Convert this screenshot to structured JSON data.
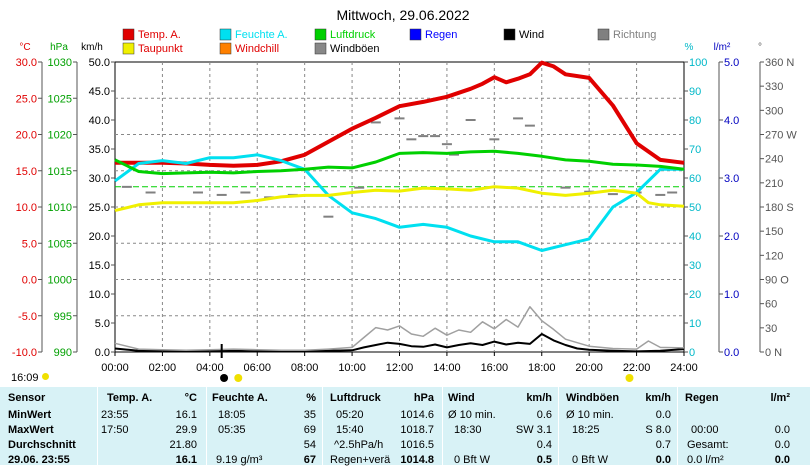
{
  "chart_data": {
    "type": "line",
    "title": "Mittwoch, 29.06.2022",
    "x_ticks": [
      "00:00",
      "02:00",
      "04:00",
      "06:00",
      "08:00",
      "10:00",
      "12:00",
      "14:00",
      "16:00",
      "18:00",
      "20:00",
      "22:00",
      "24:00"
    ],
    "xlim": [
      0,
      24
    ],
    "grid": true,
    "legend_position": "top",
    "axes": [
      {
        "id": "temp",
        "unit": "°C",
        "ticks": [
          "30.0",
          "25.0",
          "20.0",
          "15.0",
          "10.0",
          "5.0",
          "0.0",
          "-5.0",
          "-10.0"
        ],
        "ylim": [
          -10,
          30
        ],
        "color": "#e00000"
      },
      {
        "id": "hpa",
        "unit": "hPa",
        "ticks": [
          "1030",
          "1025",
          "1020",
          "1015",
          "1010",
          "1005",
          "1000",
          "995",
          "990"
        ],
        "ylim": [
          990,
          1030
        ],
        "color": "#00a000"
      },
      {
        "id": "kmh",
        "unit": "km/h",
        "ticks": [
          "50.0",
          "45.0",
          "40.0",
          "35.0",
          "30.0",
          "25.0",
          "20.0",
          "15.0",
          "10.0",
          "5.0",
          "0.0"
        ],
        "ylim": [
          0,
          50
        ],
        "color": "#000000"
      },
      {
        "id": "pct",
        "unit": "%",
        "ticks": [
          "100",
          "90",
          "80",
          "70",
          "60",
          "50",
          "40",
          "30",
          "20",
          "10",
          "0"
        ],
        "ylim": [
          0,
          100
        ],
        "color": "#00b8c8"
      },
      {
        "id": "rain",
        "unit": "l/m²",
        "ticks": [
          "5.0",
          "4.0",
          "3.0",
          "2.0",
          "1.0",
          "0.0"
        ],
        "ylim": [
          0,
          5
        ],
        "color": "#0000c0"
      },
      {
        "id": "dir",
        "unit": "°",
        "ticks": [
          "360 N",
          "330",
          "300",
          "270 W",
          "240",
          "210",
          "180 S",
          "150",
          "120",
          "90 O",
          "60",
          "30",
          "0 N"
        ],
        "ylim": [
          0,
          360
        ],
        "color": "#555555"
      }
    ],
    "legend": [
      {
        "name": "Temp. A.",
        "color": "#e00000"
      },
      {
        "name": "Feuchte A.",
        "color": "#00e0f0"
      },
      {
        "name": "Luftdruck",
        "color": "#00d000"
      },
      {
        "name": "Regen",
        "color": "#0000ff"
      },
      {
        "name": "Wind",
        "color": "#000000"
      },
      {
        "name": "Richtung",
        "color": "#808080"
      },
      {
        "name": "Taupunkt",
        "color": "#f0f000"
      },
      {
        "name": "Windchill",
        "color": "#ff8000"
      },
      {
        "name": "Windböen",
        "color": "#888888"
      }
    ],
    "series": [
      {
        "name": "Temp. A.",
        "axis": "temp",
        "color": "#e00000",
        "x": [
          0,
          1,
          2,
          3,
          4,
          5,
          6,
          7,
          8,
          9,
          10,
          11,
          12,
          13,
          14,
          15,
          15.5,
          16,
          16.5,
          17,
          17.5,
          18,
          18.5,
          19,
          20,
          21,
          22,
          23,
          24
        ],
        "y": [
          16.1,
          16.1,
          16.1,
          16.0,
          15.8,
          15.7,
          15.8,
          16.3,
          17.2,
          19.0,
          20.8,
          22.3,
          23.9,
          24.5,
          25.2,
          26.3,
          27.0,
          27.9,
          27.2,
          27.7,
          28.3,
          29.9,
          29.4,
          28.3,
          27.8,
          24.0,
          18.8,
          16.5,
          16.1
        ]
      },
      {
        "name": "Feuchte A.",
        "axis": "pct",
        "color": "#00e0f0",
        "x": [
          0,
          1,
          2,
          3,
          4,
          5,
          6,
          7,
          8,
          9,
          10,
          11,
          12,
          13,
          14,
          15,
          16,
          17,
          18,
          19,
          20,
          21,
          22,
          23,
          24
        ],
        "y": [
          59,
          65,
          66,
          65,
          67,
          67,
          68,
          66,
          63,
          54,
          48,
          46,
          43,
          44,
          43,
          40,
          38,
          38,
          35,
          37,
          39,
          50,
          55,
          63,
          63
        ]
      },
      {
        "name": "Luftdruck",
        "axis": "hpa",
        "color": "#00d000",
        "x": [
          0,
          1,
          2,
          3,
          4,
          5,
          6,
          7,
          8,
          9,
          10,
          11,
          12,
          13,
          14,
          15,
          16,
          17,
          18,
          19,
          20,
          21,
          22,
          23,
          24
        ],
        "y": [
          1016.5,
          1014.9,
          1014.6,
          1014.7,
          1014.8,
          1014.7,
          1014.9,
          1015.0,
          1015.2,
          1015.5,
          1015.4,
          1016.2,
          1017.4,
          1017.5,
          1017.4,
          1017.6,
          1017.7,
          1017.4,
          1017.0,
          1016.5,
          1016.3,
          1015.9,
          1015.8,
          1015.6,
          1015.2
        ]
      },
      {
        "name": "Taupunkt",
        "axis": "temp",
        "color": "#f0f000",
        "x": [
          0,
          1,
          2,
          3,
          4,
          5,
          6,
          7,
          8,
          9,
          10,
          11,
          12,
          13,
          14,
          15,
          16,
          17,
          18,
          19,
          20,
          21,
          22,
          22.5,
          23,
          24
        ],
        "y": [
          9.5,
          10.3,
          10.6,
          10.6,
          10.6,
          10.6,
          10.9,
          11.4,
          11.6,
          11.6,
          12.0,
          12.3,
          12.2,
          12.6,
          12.5,
          12.3,
          12.8,
          12.6,
          11.9,
          11.6,
          11.9,
          12.3,
          11.9,
          10.6,
          10.3,
          10.1
        ]
      },
      {
        "name": "Wind",
        "axis": "kmh",
        "color": "#000000",
        "x": [
          0,
          1,
          2,
          3,
          4,
          5,
          6,
          7,
          8,
          9,
          10,
          10.5,
          11,
          11.5,
          12,
          12.5,
          13,
          13.5,
          14,
          14.5,
          15,
          15.5,
          16,
          16.5,
          17,
          17.5,
          18,
          18.5,
          19,
          19.5,
          20,
          21,
          22,
          23,
          24
        ],
        "y": [
          0.6,
          0.2,
          0.2,
          0.1,
          0.2,
          0.2,
          0.1,
          0.1,
          0.1,
          0.2,
          0.3,
          0.8,
          1.2,
          1.6,
          1.4,
          1.0,
          0.9,
          1.3,
          0.8,
          1.2,
          1.5,
          1.2,
          1.8,
          1.3,
          1.6,
          1.4,
          3.1,
          2.0,
          1.2,
          0.6,
          0.4,
          0.2,
          0.1,
          0.2,
          0.5
        ]
      },
      {
        "name": "Windböen",
        "axis": "kmh",
        "color": "#a0a0a0",
        "x": [
          0,
          1,
          2,
          3,
          4,
          5,
          6,
          7,
          8,
          9,
          10,
          10.5,
          11,
          11.5,
          12,
          12.5,
          13,
          13.5,
          14,
          14.5,
          15,
          15.5,
          16,
          16.5,
          17,
          17.5,
          18,
          18.5,
          19,
          19.5,
          20,
          21,
          22,
          22.5,
          23,
          24
        ],
        "y": [
          1.5,
          0.5,
          0.4,
          0.3,
          0.4,
          0.5,
          0.4,
          0.3,
          0.3,
          0.5,
          0.8,
          2.5,
          4.2,
          3.8,
          4.5,
          3.1,
          2.7,
          4.1,
          2.9,
          3.8,
          3.4,
          5.2,
          4.0,
          5.6,
          4.3,
          7.8,
          5.4,
          3.9,
          2.2,
          1.6,
          1.0,
          0.6,
          0.5,
          1.9,
          0.8,
          0.7
        ]
      }
    ],
    "richtung": {
      "name": "Richtung",
      "axis": "dir",
      "color": "#808080",
      "x": [
        0.5,
        1.5,
        3.5,
        4.5,
        5.5,
        6.5,
        7.5,
        9,
        10.3,
        11,
        12,
        12.5,
        13,
        13.5,
        14,
        14.3,
        15,
        16,
        17,
        17.5,
        19,
        20,
        21,
        22,
        23,
        23.5
      ],
      "y": [
        205,
        198,
        198,
        195,
        198,
        192,
        195,
        168,
        204,
        285,
        290,
        264,
        268,
        268,
        258,
        245,
        288,
        264,
        290,
        281,
        204,
        199,
        196,
        198,
        195,
        198
      ]
    },
    "threshold_line": {
      "axis": "temp",
      "value": 12.8,
      "color": "#00d000"
    }
  },
  "status": {
    "time": "16:09"
  },
  "table": {
    "headers": {
      "sensor": "Sensor",
      "temp": "Temp. A.",
      "temp_unit": "°C",
      "hum": "Feuchte A.",
      "hum_unit": "%",
      "pres": "Luftdruck",
      "pres_unit": "hPa",
      "wind": "Wind",
      "wind_unit": "km/h",
      "gust": "Windböen",
      "gust_unit": "km/h",
      "rain": "Regen",
      "rain_unit": "l/m²"
    },
    "rows": [
      {
        "label": "MinWert",
        "temp_time": "23:55",
        "temp": "16.1",
        "hum_time": "18:05",
        "hum": "35",
        "pres_time": "05:20",
        "pres": "1014.6",
        "wind_time": "Ø 10 min.",
        "wind": "0.6",
        "gust_time": "Ø 10 min.",
        "gust": "0.0",
        "rain_time": "",
        "rain": ""
      },
      {
        "label": "MaxWert",
        "temp_time": "17:50",
        "temp": "29.9",
        "hum_time": "05:35",
        "hum": "69",
        "pres_time": "15:40",
        "pres": "1018.7",
        "wind_time": "18:30",
        "wind_dir": "SW 3.1",
        "wind": "",
        "gust_time": "18:25",
        "gust_dir": "S 8.0",
        "gust": "",
        "rain_time": "00:00",
        "rain": "0.0"
      },
      {
        "label": "Durchschnitt",
        "temp_time": "",
        "temp": "21.80",
        "hum_time": "",
        "hum": "54",
        "pres_time": "^2.5hPa/h",
        "pres": "1016.5",
        "wind_time": "",
        "wind": "0.4",
        "gust_time": "",
        "gust": "0.7",
        "rain_time": "Gesamt:",
        "rain": "0.0"
      },
      {
        "label": "29.06. 23:55",
        "temp_time": "",
        "temp": "16.1",
        "hum_time": "9.19 g/m³",
        "hum": "67",
        "pres_time": "Regen+verä",
        "pres": "1014.8",
        "wind_time": "0 Bft W",
        "wind": "0.5",
        "gust_time": "0 Bft W",
        "gust": "0.0",
        "rain_time": "0.0 l/m²",
        "rain": "0.0"
      }
    ]
  }
}
